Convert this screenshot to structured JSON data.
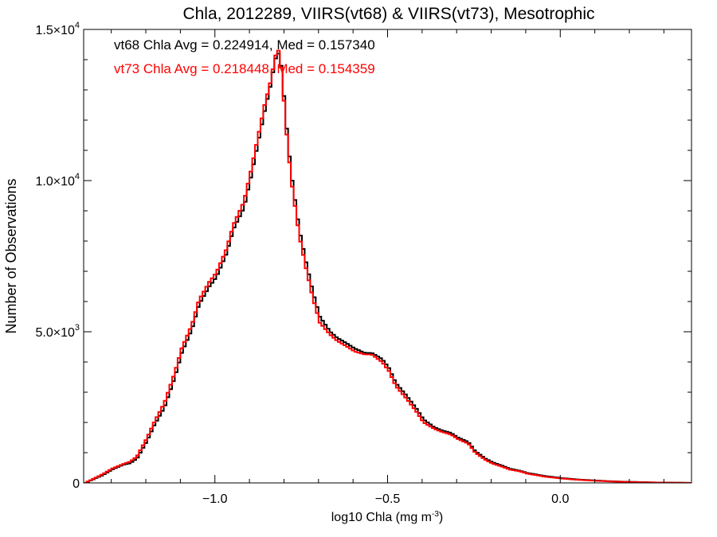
{
  "chart_data": {
    "type": "line",
    "title": "Chla, 2012289, VIIRS(vt68) & VIIRS(vt73), Mesotrophic",
    "xlabel": "log10 Chla (mg m",
    "xlabel_sup": "-3",
    "xlabel_end": ")",
    "ylabel": "Number of Observations",
    "xlim": [
      -1.38,
      0.38
    ],
    "ylim": [
      0,
      15000
    ],
    "x_ticks": [
      {
        "value": -1.0,
        "label": "−1.0"
      },
      {
        "value": -0.5,
        "label": "−0.5"
      },
      {
        "value": 0.0,
        "label": "0.0"
      }
    ],
    "y_ticks": [
      {
        "value": 0,
        "mant": "0",
        "sup": ""
      },
      {
        "value": 5000,
        "mant": "5.0×10",
        "sup": "3"
      },
      {
        "value": 10000,
        "mant": "1.0×10",
        "sup": "4"
      },
      {
        "value": 15000,
        "mant": "1.5×10",
        "sup": "4"
      }
    ],
    "annotations": [
      {
        "text": "vt68 Chla Avg = 0.224914, Med = 0.157340",
        "color": "#000000"
      },
      {
        "text": "vt73 Chla Avg = 0.218448, Med = 0.154359",
        "color": "#ff0000"
      }
    ],
    "series": [
      {
        "color": "#000000",
        "x": [
          -1.38,
          -1.33,
          -1.3,
          -1.27,
          -1.25,
          -1.23,
          -1.2,
          -1.18,
          -1.15,
          -1.12,
          -1.1,
          -1.07,
          -1.05,
          -1.02,
          -1.0,
          -0.97,
          -0.95,
          -0.92,
          -0.9,
          -0.88,
          -0.86,
          -0.84,
          -0.83,
          -0.82,
          -0.81,
          -0.8,
          -0.79,
          -0.78,
          -0.76,
          -0.74,
          -0.72,
          -0.7,
          -0.67,
          -0.65,
          -0.62,
          -0.6,
          -0.57,
          -0.55,
          -0.52,
          -0.5,
          -0.48,
          -0.45,
          -0.42,
          -0.4,
          -0.37,
          -0.35,
          -0.32,
          -0.3,
          -0.27,
          -0.25,
          -0.22,
          -0.2,
          -0.17,
          -0.15,
          -0.12,
          -0.1,
          -0.05,
          0.0,
          0.05,
          0.1,
          0.15,
          0.2,
          0.25,
          0.3,
          0.35,
          0.38
        ],
        "y": [
          0,
          250,
          450,
          600,
          650,
          800,
          1400,
          1900,
          2500,
          3500,
          4300,
          5100,
          5900,
          6500,
          6800,
          7600,
          8400,
          9100,
          10100,
          11200,
          12300,
          13300,
          14000,
          14200,
          13700,
          12200,
          11000,
          10000,
          8400,
          7300,
          6300,
          5500,
          5000,
          4800,
          4600,
          4450,
          4300,
          4300,
          4100,
          3800,
          3300,
          2900,
          2450,
          2100,
          1850,
          1750,
          1650,
          1500,
          1350,
          1050,
          800,
          680,
          560,
          470,
          400,
          330,
          230,
          160,
          110,
          80,
          50,
          35,
          20,
          10,
          5,
          0
        ]
      },
      {
        "color": "#ff0000",
        "x": [
          -1.38,
          -1.33,
          -1.3,
          -1.27,
          -1.25,
          -1.23,
          -1.2,
          -1.18,
          -1.15,
          -1.12,
          -1.1,
          -1.07,
          -1.05,
          -1.02,
          -1.0,
          -0.97,
          -0.95,
          -0.92,
          -0.9,
          -0.88,
          -0.86,
          -0.84,
          -0.83,
          -0.82,
          -0.81,
          -0.8,
          -0.79,
          -0.78,
          -0.76,
          -0.74,
          -0.72,
          -0.7,
          -0.67,
          -0.65,
          -0.62,
          -0.6,
          -0.57,
          -0.55,
          -0.52,
          -0.5,
          -0.48,
          -0.45,
          -0.42,
          -0.4,
          -0.37,
          -0.35,
          -0.32,
          -0.3,
          -0.27,
          -0.25,
          -0.22,
          -0.2,
          -0.17,
          -0.15,
          -0.12,
          -0.1,
          -0.05,
          0.0,
          0.05,
          0.1,
          0.15,
          0.2,
          0.25,
          0.3,
          0.35,
          0.38
        ],
        "y": [
          0,
          280,
          480,
          620,
          700,
          870,
          1500,
          2000,
          2650,
          3650,
          4450,
          5250,
          6050,
          6650,
          6950,
          7750,
          8550,
          9300,
          10300,
          11400,
          12500,
          13400,
          14100,
          14300,
          13600,
          12000,
          10800,
          9800,
          8200,
          7100,
          6100,
          5300,
          4900,
          4700,
          4500,
          4350,
          4250,
          4250,
          4000,
          3700,
          3200,
          2800,
          2350,
          2000,
          1800,
          1700,
          1600,
          1450,
          1300,
          1000,
          760,
          640,
          530,
          440,
          380,
          310,
          210,
          145,
          100,
          70,
          45,
          30,
          18,
          9,
          4,
          0
        ]
      }
    ]
  }
}
